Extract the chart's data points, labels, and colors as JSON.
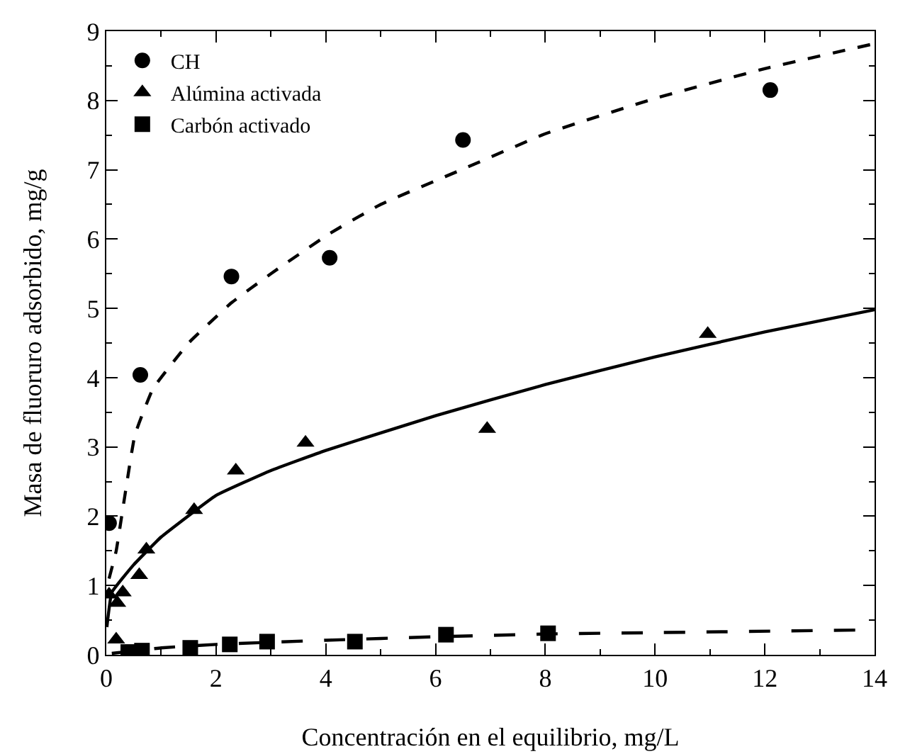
{
  "chart_data": {
    "type": "scatter",
    "xlabel": "Concentración en el equilibrio, mg/L",
    "ylabel": "Masa de fluoruro adsorbido, mg/g",
    "xlim": [
      0,
      14
    ],
    "xticks": [
      0,
      2,
      4,
      6,
      8,
      10,
      12,
      14
    ],
    "ylim": [
      0,
      9
    ],
    "yticks": [
      0,
      1,
      2,
      3,
      4,
      5,
      6,
      7,
      8,
      9
    ],
    "grid": false,
    "legend": "top left",
    "series": [
      {
        "name": "CH",
        "marker": "circle",
        "color": "#000000",
        "x": [
          0.05,
          0.62,
          2.28,
          4.07,
          6.5,
          12.1
        ],
        "values": [
          1.9,
          4.04,
          5.46,
          5.73,
          7.43,
          8.15
        ]
      },
      {
        "name": "Alúmina activada",
        "marker": "triangle",
        "color": "#000000",
        "x": [
          0.05,
          0.18,
          0.2,
          0.3,
          0.6,
          0.73,
          1.6,
          2.36,
          3.63,
          6.94,
          10.96
        ],
        "values": [
          0.87,
          0.22,
          0.75,
          0.9,
          1.15,
          1.52,
          2.09,
          2.66,
          3.06,
          3.26,
          4.63
        ]
      },
      {
        "name": "Carbón activado",
        "marker": "square",
        "color": "#000000",
        "x": [
          0.4,
          0.65,
          1.53,
          2.25,
          2.93,
          4.53,
          6.19,
          8.05
        ],
        "values": [
          0.04,
          0.06,
          0.1,
          0.15,
          0.19,
          0.19,
          0.29,
          0.31
        ]
      },
      {
        "type": "line",
        "line_style": "dotted",
        "color": "#000000",
        "x": [
          0.05,
          0.18,
          0.52,
          0.85,
          1.5,
          2.28,
          3,
          4.07,
          5,
          6.5,
          8,
          10,
          12,
          14
        ],
        "values": [
          1.1,
          1.5,
          3.17,
          3.84,
          4.5,
          5.08,
          5.5,
          6.08,
          6.5,
          7.01,
          7.52,
          8.03,
          8.46,
          8.82
        ]
      },
      {
        "type": "line",
        "line_style": "solid",
        "color": "#000000",
        "x": [
          0.01,
          0.1,
          0.5,
          1,
          2,
          3,
          4,
          6,
          8,
          10,
          12,
          14
        ],
        "values": [
          0.4,
          0.9,
          1.3,
          1.7,
          2.3,
          2.66,
          2.95,
          3.45,
          3.9,
          4.3,
          4.66,
          4.98
        ]
      },
      {
        "type": "line",
        "line_style": "dashed",
        "color": "#000000",
        "x": [
          0.1,
          1,
          2,
          4,
          6,
          8,
          10,
          14
        ],
        "values": [
          0.02,
          0.1,
          0.15,
          0.21,
          0.26,
          0.3,
          0.32,
          0.36
        ]
      }
    ]
  }
}
